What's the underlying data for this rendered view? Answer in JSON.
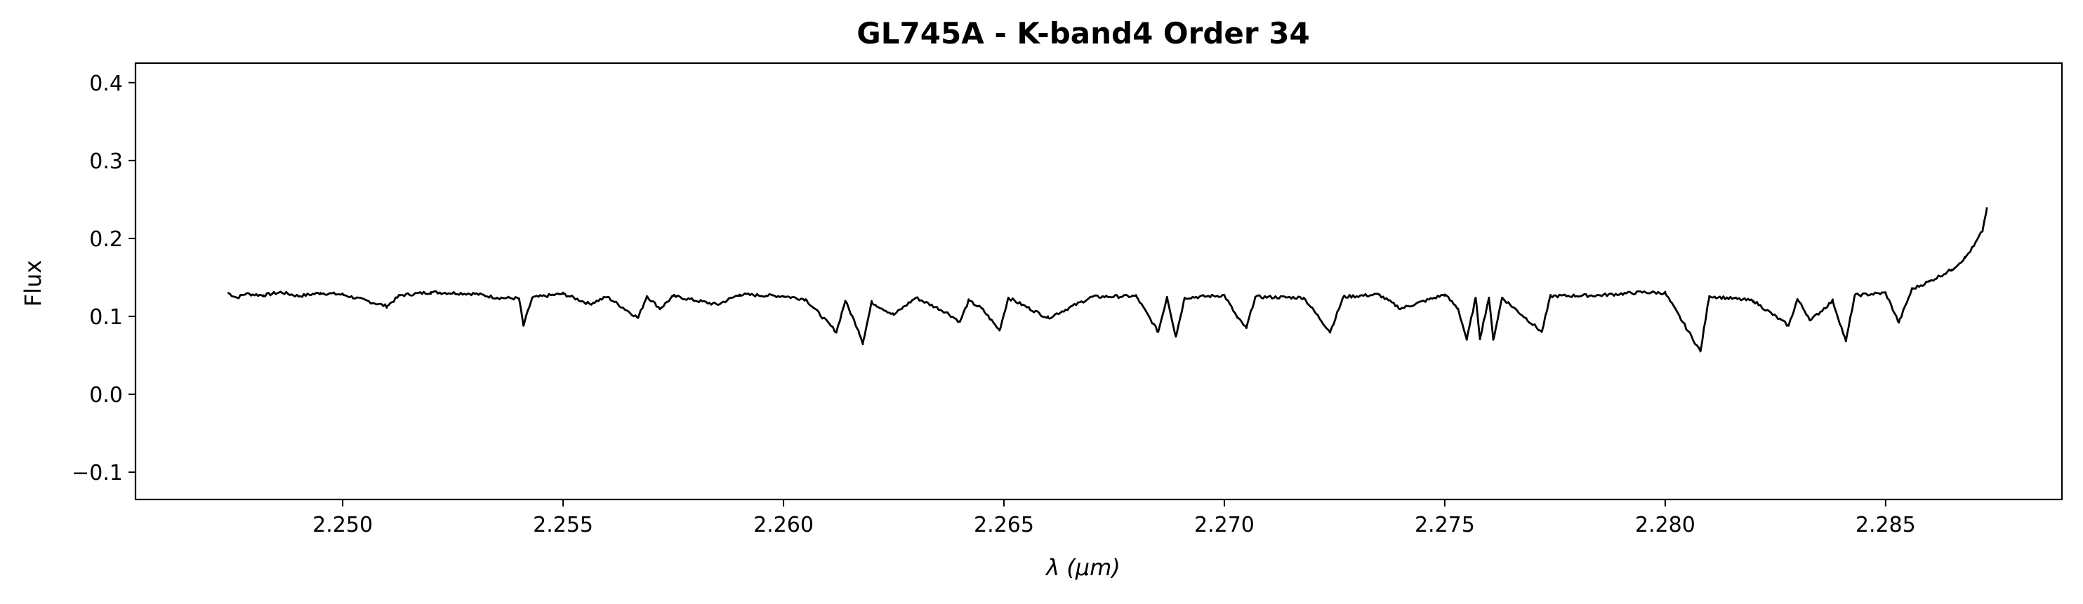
{
  "chart_data": {
    "type": "line",
    "title": "GL745A - K-band4 Order 34",
    "xlabel": "λ (μm)",
    "ylabel": "Flux",
    "xlim": [
      2.2453,
      2.289
    ],
    "ylim": [
      -0.135,
      0.425
    ],
    "xticks": [
      2.25,
      2.255,
      2.26,
      2.265,
      2.27,
      2.275,
      2.28,
      2.285
    ],
    "xtick_labels": [
      "2.250",
      "2.255",
      "2.260",
      "2.265",
      "2.270",
      "2.275",
      "2.280",
      "2.285"
    ],
    "yticks": [
      -0.1,
      0.0,
      0.1,
      0.2,
      0.3,
      0.4
    ],
    "ytick_labels": [
      "−0.1",
      "0.0",
      "0.1",
      "0.2",
      "0.3",
      "0.4"
    ],
    "grid": false,
    "series": [
      {
        "color": "#000000",
        "continuum": 0.13,
        "x_start": 2.2474,
        "x_end": 2.2873,
        "points": [
          [
            2.2474,
            0.13
          ],
          [
            2.2476,
            0.124
          ],
          [
            2.2478,
            0.129
          ],
          [
            2.2482,
            0.127
          ],
          [
            2.2486,
            0.131
          ],
          [
            2.249,
            0.126
          ],
          [
            2.2495,
            0.13
          ],
          [
            2.25,
            0.128
          ],
          [
            2.2506,
            0.119
          ],
          [
            2.251,
            0.113
          ],
          [
            2.2513,
            0.127
          ],
          [
            2.252,
            0.131
          ],
          [
            2.253,
            0.129
          ],
          [
            2.2535,
            0.124
          ],
          [
            2.254,
            0.123
          ],
          [
            2.2541,
            0.088
          ],
          [
            2.2543,
            0.124
          ],
          [
            2.255,
            0.129
          ],
          [
            2.2556,
            0.116
          ],
          [
            2.256,
            0.125
          ],
          [
            2.2567,
            0.098
          ],
          [
            2.2569,
            0.126
          ],
          [
            2.2572,
            0.11
          ],
          [
            2.2575,
            0.126
          ],
          [
            2.2585,
            0.115
          ],
          [
            2.259,
            0.128
          ],
          [
            2.26,
            0.126
          ],
          [
            2.2605,
            0.122
          ],
          [
            2.2612,
            0.08
          ],
          [
            2.2614,
            0.12
          ],
          [
            2.2617,
            0.082
          ],
          [
            2.2618,
            0.066
          ],
          [
            2.262,
            0.118
          ],
          [
            2.2625,
            0.102
          ],
          [
            2.263,
            0.124
          ],
          [
            2.2637,
            0.105
          ],
          [
            2.264,
            0.093
          ],
          [
            2.2642,
            0.12
          ],
          [
            2.2645,
            0.11
          ],
          [
            2.2649,
            0.082
          ],
          [
            2.2651,
            0.124
          ],
          [
            2.266,
            0.098
          ],
          [
            2.267,
            0.125
          ],
          [
            2.268,
            0.126
          ],
          [
            2.2685,
            0.08
          ],
          [
            2.2687,
            0.125
          ],
          [
            2.2689,
            0.074
          ],
          [
            2.2691,
            0.124
          ],
          [
            2.27,
            0.127
          ],
          [
            2.2703,
            0.098
          ],
          [
            2.2705,
            0.085
          ],
          [
            2.2707,
            0.125
          ],
          [
            2.2718,
            0.124
          ],
          [
            2.2724,
            0.08
          ],
          [
            2.2727,
            0.125
          ],
          [
            2.2735,
            0.128
          ],
          [
            2.274,
            0.11
          ],
          [
            2.275,
            0.128
          ],
          [
            2.2753,
            0.11
          ],
          [
            2.2755,
            0.07
          ],
          [
            2.2757,
            0.124
          ],
          [
            2.2758,
            0.072
          ],
          [
            2.276,
            0.124
          ],
          [
            2.2761,
            0.07
          ],
          [
            2.2763,
            0.124
          ],
          [
            2.2772,
            0.08
          ],
          [
            2.2774,
            0.126
          ],
          [
            2.2785,
            0.127
          ],
          [
            2.2795,
            0.131
          ],
          [
            2.28,
            0.13
          ],
          [
            2.2808,
            0.055
          ],
          [
            2.281,
            0.126
          ],
          [
            2.282,
            0.12
          ],
          [
            2.2828,
            0.088
          ],
          [
            2.283,
            0.122
          ],
          [
            2.2833,
            0.095
          ],
          [
            2.2838,
            0.12
          ],
          [
            2.2841,
            0.068
          ],
          [
            2.2843,
            0.127
          ],
          [
            2.285,
            0.13
          ],
          [
            2.2853,
            0.092
          ],
          [
            2.2856,
            0.135
          ],
          [
            2.286,
            0.145
          ],
          [
            2.2865,
            0.16
          ],
          [
            2.2868,
            0.175
          ],
          [
            2.287,
            0.19
          ],
          [
            2.2872,
            0.21
          ],
          [
            2.2873,
            0.24
          ]
        ]
      }
    ]
  }
}
